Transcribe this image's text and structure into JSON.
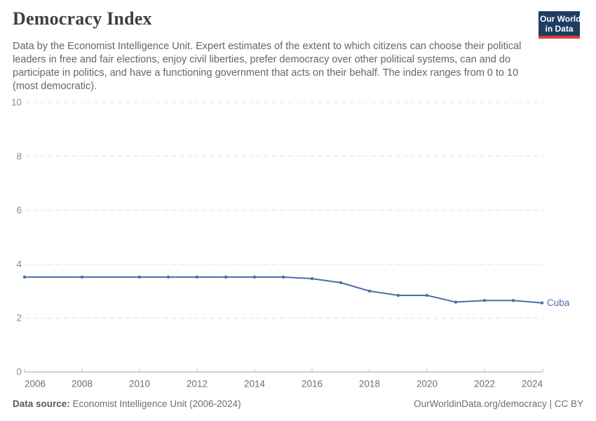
{
  "header": {
    "title": "Democracy Index",
    "description": "Data by the Economist Intelligence Unit. Expert estimates of the extent to which citizens can choose their political leaders in free and fair elections, enjoy civil liberties, prefer democracy over other political systems, can and do participate in politics, and have a functioning government that acts on their behalf. The index ranges from 0 to 10 (most democratic).",
    "logo": {
      "line1": "Our World",
      "line2": "in Data"
    }
  },
  "chart_data": {
    "type": "line",
    "title": "Democracy Index",
    "x": [
      2006,
      2008,
      2010,
      2011,
      2012,
      2013,
      2014,
      2015,
      2016,
      2017,
      2018,
      2019,
      2020,
      2021,
      2022,
      2023,
      2024
    ],
    "series": [
      {
        "name": "Cuba",
        "color": "#4c6da8",
        "values": [
          3.52,
          3.52,
          3.52,
          3.52,
          3.52,
          3.52,
          3.52,
          3.52,
          3.46,
          3.31,
          3.0,
          2.84,
          2.84,
          2.59,
          2.65,
          2.65,
          2.56
        ]
      }
    ],
    "xlabel": "",
    "ylabel": "",
    "ylim": [
      0,
      10
    ],
    "xlim": [
      2006,
      2024
    ],
    "y_ticks": [
      0,
      2,
      4,
      6,
      8,
      10
    ],
    "x_ticks": [
      2006,
      2008,
      2010,
      2012,
      2014,
      2016,
      2018,
      2020,
      2022,
      2024
    ],
    "grid": "dashed-horizontal",
    "legend_position": "end-of-line"
  },
  "footer": {
    "source_label": "Data source:",
    "source_value": "Economist Intelligence Unit (2006-2024)",
    "link": "OurWorldinData.org/democracy",
    "separator": " | ",
    "license": "CC BY"
  },
  "colors": {
    "series_blue": "#4c6da8",
    "grid": "#e2e2e2",
    "axis": "#a5a5a5",
    "tick": "#b8b8b8",
    "logo_navy": "#1d3d63",
    "logo_red": "#dc3e34"
  }
}
